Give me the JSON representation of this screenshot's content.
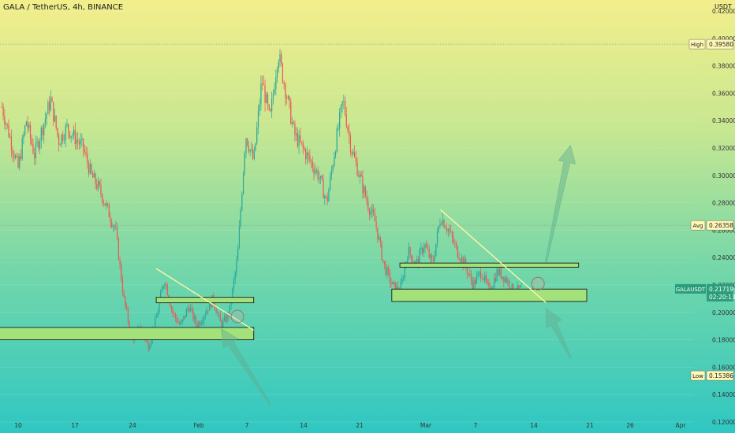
{
  "header": {
    "title": "GALA / TetherUS, 4h, BINANCE",
    "currency": "USDT"
  },
  "chart_data": {
    "type": "candlestick",
    "title": "GALA / TetherUS, 4h, BINANCE",
    "y_unit": "USDT",
    "ylim": [
      0.12,
      0.42
    ],
    "yticks": [
      0.12,
      0.14,
      0.16,
      0.18,
      0.2,
      0.22,
      0.24,
      0.26,
      0.28,
      0.3,
      0.32,
      0.34,
      0.36,
      0.38,
      0.4,
      0.42
    ],
    "ytick_labels": [
      "0.12000",
      "0.14000",
      "0.16000",
      "0.18000",
      "0.20000",
      "0.22000",
      "0.24000",
      "0.26000",
      "0.28000",
      "0.30000",
      "0.32000",
      "0.34000",
      "0.36000",
      "0.38000",
      "0.40000",
      "0.42000"
    ],
    "x_labels": [
      "10",
      "17",
      "24",
      "Feb",
      "7",
      "14",
      "21",
      "Mar",
      "7",
      "14",
      "21",
      "26",
      "Apr"
    ],
    "price_path": [
      {
        "x": "Jan 8",
        "y": 0.35
      },
      {
        "x": "Jan 10",
        "y": 0.305
      },
      {
        "x": "Jan 11",
        "y": 0.34
      },
      {
        "x": "Jan 12",
        "y": 0.315
      },
      {
        "x": "Jan 14",
        "y": 0.355
      },
      {
        "x": "Jan 15",
        "y": 0.325
      },
      {
        "x": "Jan 16",
        "y": 0.335
      },
      {
        "x": "Jan 18",
        "y": 0.32
      },
      {
        "x": "Jan 19",
        "y": 0.3
      },
      {
        "x": "Jan 20",
        "y": 0.29
      },
      {
        "x": "Jan 22",
        "y": 0.26
      },
      {
        "x": "Jan 23",
        "y": 0.21
      },
      {
        "x": "Jan 24",
        "y": 0.18
      },
      {
        "x": "Jan 25",
        "y": 0.19
      },
      {
        "x": "Jan 26",
        "y": 0.175
      },
      {
        "x": "Jan 27",
        "y": 0.195
      },
      {
        "x": "Jan 28",
        "y": 0.225
      },
      {
        "x": "Jan 29",
        "y": 0.2
      },
      {
        "x": "Jan 30",
        "y": 0.19
      },
      {
        "x": "Jan 31",
        "y": 0.205
      },
      {
        "x": "Feb 1",
        "y": 0.19
      },
      {
        "x": "Feb 2",
        "y": 0.2
      },
      {
        "x": "Feb 3",
        "y": 0.21
      },
      {
        "x": "Feb 4",
        "y": 0.19
      },
      {
        "x": "Feb 5",
        "y": 0.2
      },
      {
        "x": "Feb 6",
        "y": 0.24
      },
      {
        "x": "Feb 7",
        "y": 0.33
      },
      {
        "x": "Feb 8",
        "y": 0.31
      },
      {
        "x": "Feb 9",
        "y": 0.37
      },
      {
        "x": "Feb 10",
        "y": 0.34
      },
      {
        "x": "Feb 11",
        "y": 0.39
      },
      {
        "x": "Feb 12",
        "y": 0.36
      },
      {
        "x": "Feb 13",
        "y": 0.33
      },
      {
        "x": "Feb 14",
        "y": 0.32
      },
      {
        "x": "Feb 15",
        "y": 0.31
      },
      {
        "x": "Feb 16",
        "y": 0.3
      },
      {
        "x": "Feb 17",
        "y": 0.28
      },
      {
        "x": "Feb 18",
        "y": 0.32
      },
      {
        "x": "Feb 19",
        "y": 0.355
      },
      {
        "x": "Feb 20",
        "y": 0.32
      },
      {
        "x": "Feb 21",
        "y": 0.3
      },
      {
        "x": "Feb 22",
        "y": 0.28
      },
      {
        "x": "Feb 23",
        "y": 0.265
      },
      {
        "x": "Feb 24",
        "y": 0.235
      },
      {
        "x": "Feb 25",
        "y": 0.22
      },
      {
        "x": "Feb 26",
        "y": 0.215
      },
      {
        "x": "Feb 27",
        "y": 0.245
      },
      {
        "x": "Feb 28",
        "y": 0.235
      },
      {
        "x": "Mar 1",
        "y": 0.25
      },
      {
        "x": "Mar 2",
        "y": 0.235
      },
      {
        "x": "Mar 3",
        "y": 0.27
      },
      {
        "x": "Mar 4",
        "y": 0.26
      },
      {
        "x": "Mar 5",
        "y": 0.245
      },
      {
        "x": "Mar 6",
        "y": 0.235
      },
      {
        "x": "Mar 7",
        "y": 0.22
      },
      {
        "x": "Mar 8",
        "y": 0.23
      },
      {
        "x": "Mar 9",
        "y": 0.215
      },
      {
        "x": "Mar 10",
        "y": 0.23
      },
      {
        "x": "Mar 11",
        "y": 0.225
      },
      {
        "x": "Mar 12",
        "y": 0.215
      },
      {
        "x": "Mar 13",
        "y": 0.2172
      }
    ],
    "annotations": {
      "high": {
        "label": "High",
        "value": "0.39580",
        "y": 0.3958
      },
      "avg": {
        "label": "Avg",
        "value": "0.26358",
        "y": 0.26358
      },
      "low": {
        "label": "Low",
        "value": "0.15386",
        "y": 0.15386
      },
      "last": {
        "label": "GALAUSDT",
        "value": "0.21719",
        "timer": "02:20:13",
        "y": 0.21719
      }
    },
    "zones": [
      {
        "name": "support-zone-left",
        "from": "Jan 7",
        "to": "Feb 8",
        "y_low": 0.18,
        "y_high": 0.189
      },
      {
        "name": "resistance-zone-left",
        "from": "Jan 27",
        "to": "Feb 8",
        "y_low": 0.207,
        "y_high": 0.211
      },
      {
        "name": "resistance-zone-right",
        "from": "Feb 26",
        "to": "Mar 20",
        "y_low": 0.233,
        "y_high": 0.236
      },
      {
        "name": "support-zone-right",
        "from": "Feb 25",
        "to": "Mar 21",
        "y_low": 0.208,
        "y_high": 0.217
      }
    ],
    "trendlines": [
      {
        "name": "trendline-left",
        "from": {
          "x": "Jan 27",
          "y": 0.232
        },
        "to": {
          "x": "Feb 8",
          "y": 0.187
        }
      },
      {
        "name": "trendline-right",
        "from": {
          "x": "Mar 3",
          "y": 0.275
        },
        "to": {
          "x": "Mar 16",
          "y": 0.207
        }
      }
    ],
    "arrows": [
      {
        "name": "arrow-up-right",
        "from": {
          "x": "Mar 16",
          "y": 0.237
        },
        "to": {
          "x": "Mar 19",
          "y": 0.322
        }
      },
      {
        "name": "arrow-left-lower",
        "from": {
          "x": "Feb 10",
          "y": 0.133
        },
        "to": {
          "x": "Feb 4",
          "y": 0.188
        }
      },
      {
        "name": "arrow-right-lower",
        "from": {
          "x": "Mar 19",
          "y": 0.167
        },
        "to": {
          "x": "Mar 16",
          "y": 0.203
        }
      }
    ],
    "circles": [
      {
        "name": "breakout-circle-left",
        "x": "Feb 6",
        "y": 0.197
      },
      {
        "name": "breakout-circle-right",
        "x": "Mar 15",
        "y": 0.221
      }
    ],
    "colors": {
      "up": "#26a69a",
      "down": "#ef5350",
      "zone_fill": "#a3e27b",
      "zone_stroke": "#1b1b1b",
      "trendline": "#fcf6a3",
      "arrow": "#5fae8f",
      "high_avg_line": "#9b9b9b"
    }
  }
}
